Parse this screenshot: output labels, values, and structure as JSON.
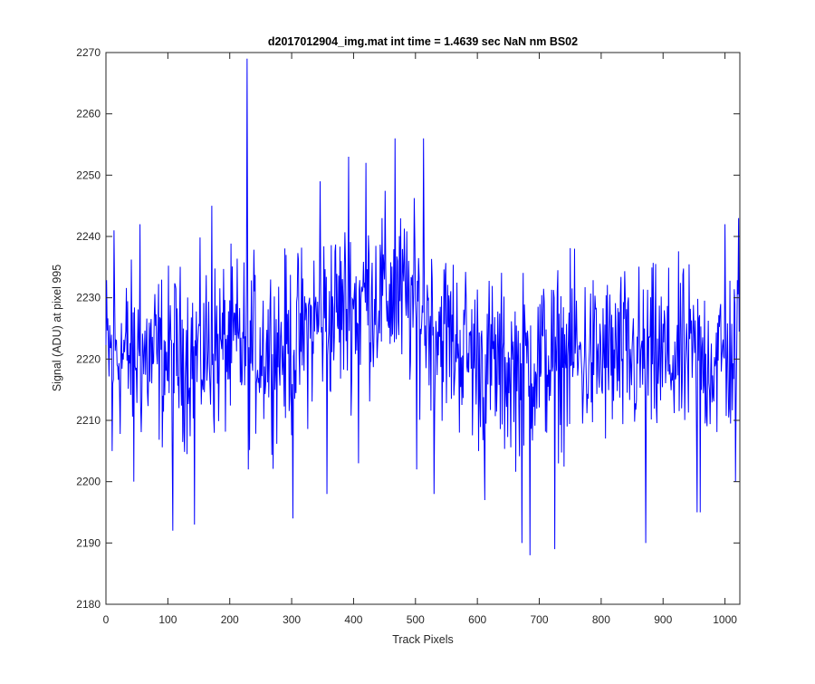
{
  "chart_data": {
    "type": "line",
    "title": "d2017012904_img.mat int time = 1.4639 sec  NaN nm BS02",
    "xlabel": "Track Pixels",
    "ylabel": "Signal (ADU) at pixel 995",
    "xlim": [
      0,
      1024
    ],
    "ylim": [
      2180,
      2270
    ],
    "xticks": [
      0,
      100,
      200,
      300,
      400,
      500,
      600,
      700,
      800,
      900,
      1000
    ],
    "yticks": [
      2180,
      2190,
      2200,
      2210,
      2220,
      2230,
      2240,
      2250,
      2260,
      2270
    ],
    "grid": false,
    "legend": "none",
    "series": [
      {
        "color": "#0000ff",
        "trend_x": [
          0,
          100,
          200,
          300,
          350,
          400,
          450,
          500,
          550,
          600,
          650,
          700,
          800,
          900,
          1000,
          1023
        ],
        "trend_y": [
          2221,
          2220,
          2222,
          2222,
          2227,
          2229,
          2231,
          2229,
          2224,
          2220,
          2218,
          2220,
          2220,
          2220,
          2220,
          2222
        ],
        "extremes": [
          {
            "x": 10,
            "y": 2205
          },
          {
            "x": 13,
            "y": 2241
          },
          {
            "x": 45,
            "y": 2200
          },
          {
            "x": 55,
            "y": 2242
          },
          {
            "x": 108,
            "y": 2192
          },
          {
            "x": 143,
            "y": 2193
          },
          {
            "x": 171,
            "y": 2245
          },
          {
            "x": 228,
            "y": 2269
          },
          {
            "x": 230,
            "y": 2202
          },
          {
            "x": 302,
            "y": 2194
          },
          {
            "x": 346,
            "y": 2249
          },
          {
            "x": 357,
            "y": 2198
          },
          {
            "x": 392,
            "y": 2253
          },
          {
            "x": 408,
            "y": 2203
          },
          {
            "x": 420,
            "y": 2252
          },
          {
            "x": 467,
            "y": 2256
          },
          {
            "x": 502,
            "y": 2202
          },
          {
            "x": 513,
            "y": 2256
          },
          {
            "x": 530,
            "y": 2198
          },
          {
            "x": 612,
            "y": 2197
          },
          {
            "x": 672,
            "y": 2190
          },
          {
            "x": 685,
            "y": 2188
          },
          {
            "x": 725,
            "y": 2189
          },
          {
            "x": 757,
            "y": 2238
          },
          {
            "x": 872,
            "y": 2190
          },
          {
            "x": 955,
            "y": 2195
          },
          {
            "x": 960,
            "y": 2195
          },
          {
            "x": 1000,
            "y": 2242
          },
          {
            "x": 1017,
            "y": 2200
          },
          {
            "x": 1022,
            "y": 2243
          }
        ]
      }
    ]
  }
}
